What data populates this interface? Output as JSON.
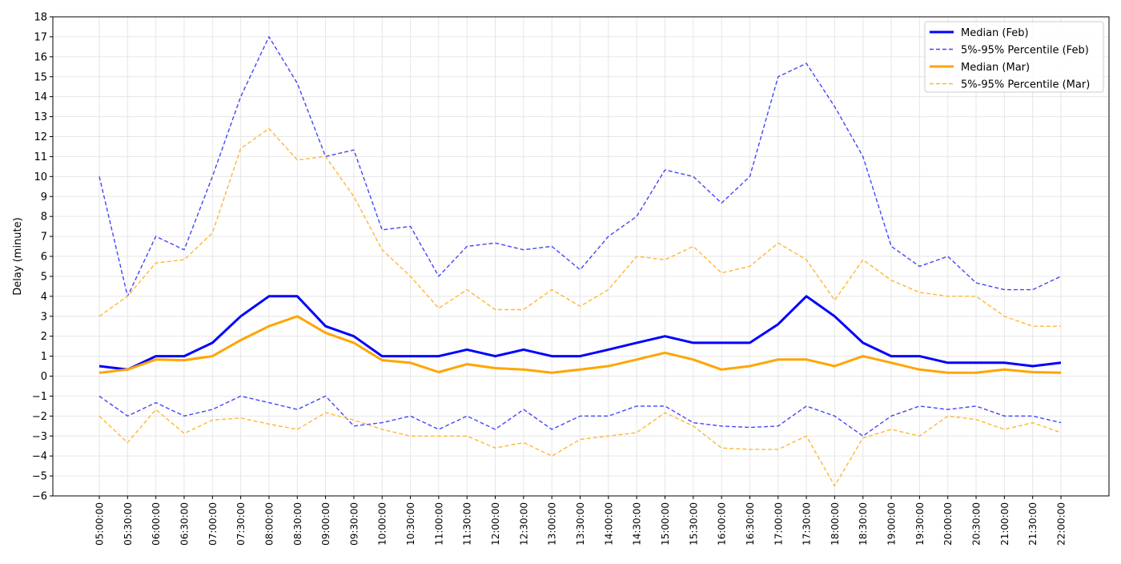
{
  "chart_data": {
    "type": "line",
    "title": "",
    "xlabel": "",
    "ylabel": "Delay (minute)",
    "ylim": [
      -6,
      18
    ],
    "yticks": [
      -6,
      -5,
      -4,
      -3,
      -2,
      -1,
      0,
      1,
      2,
      3,
      4,
      5,
      6,
      7,
      8,
      9,
      10,
      11,
      12,
      13,
      14,
      15,
      16,
      17,
      18
    ],
    "grid": true,
    "legend_position": "top-right",
    "x": [
      "05:00:00",
      "05:30:00",
      "06:00:00",
      "06:30:00",
      "07:00:00",
      "07:30:00",
      "08:00:00",
      "08:30:00",
      "09:00:00",
      "09:30:00",
      "10:00:00",
      "10:30:00",
      "11:00:00",
      "11:30:00",
      "12:00:00",
      "12:30:00",
      "13:00:00",
      "13:30:00",
      "14:00:00",
      "14:30:00",
      "15:00:00",
      "15:30:00",
      "16:00:00",
      "16:30:00",
      "17:00:00",
      "17:30:00",
      "18:00:00",
      "18:30:00",
      "19:00:00",
      "19:30:00",
      "20:00:00",
      "20:30:00",
      "21:00:00",
      "21:30:00",
      "22:00:00"
    ],
    "series": [
      {
        "name": "Median (Feb)",
        "color": "#0000ff",
        "style": "solid",
        "legend": true,
        "values": [
          0.5,
          0.33,
          1,
          1,
          1.67,
          3,
          4,
          4,
          2.5,
          2,
          1,
          1,
          1,
          1.33,
          1,
          1.33,
          1,
          1,
          1.33,
          1.67,
          2,
          1.67,
          1.67,
          1.67,
          2.6,
          4,
          3,
          1.67,
          1,
          1,
          0.67,
          0.67,
          0.67,
          0.5,
          0.67
        ]
      },
      {
        "name": "5%-95% Percentile (Feb)",
        "color": "#4444ff",
        "style": "dashed",
        "legend": true,
        "values": [
          10,
          4,
          7,
          6.33,
          10,
          14,
          17,
          14.67,
          11,
          11.33,
          7.33,
          7.5,
          5,
          6.5,
          6.67,
          6.33,
          6.5,
          5.33,
          7,
          8,
          10.33,
          10,
          8.67,
          10,
          15,
          15.67,
          13.5,
          11,
          6.5,
          5.5,
          6,
          4.67,
          4.33,
          4.33,
          5
        ]
      },
      {
        "name": "5% Percentile (Feb)",
        "color": "#4444ff",
        "style": "dashed",
        "legend": false,
        "values": [
          -1,
          -2,
          -1.33,
          -2,
          -1.67,
          -1,
          -1.33,
          -1.67,
          -1,
          -2.5,
          -2.33,
          -2,
          -2.67,
          -2,
          -2.67,
          -1.67,
          -2.67,
          -2,
          -2,
          -1.5,
          -1.5,
          -2.33,
          -2.5,
          -2.57,
          -2.5,
          -1.5,
          -2,
          -3,
          -2,
          -1.5,
          -1.67,
          -1.5,
          -2,
          -2,
          -2.33
        ]
      },
      {
        "name": "Median (Mar)",
        "color": "#ffa500",
        "style": "solid",
        "legend": true,
        "values": [
          0.17,
          0.33,
          0.83,
          0.8,
          1,
          1.8,
          2.5,
          3,
          2.17,
          1.67,
          0.8,
          0.67,
          0.2,
          0.6,
          0.4,
          0.33,
          0.17,
          0.33,
          0.5,
          0.83,
          1.17,
          0.83,
          0.33,
          0.5,
          0.83,
          0.83,
          0.5,
          1,
          0.67,
          0.33,
          0.17,
          0.17,
          0.33,
          0.2,
          0.17
        ]
      },
      {
        "name": "5%-95% Percentile (Mar)",
        "color": "#ffb733",
        "style": "dashed",
        "legend": true,
        "values": [
          3,
          4,
          5.67,
          5.83,
          7.17,
          11.4,
          12.4,
          10.83,
          11,
          9,
          6.33,
          5,
          3.4,
          4.33,
          3.33,
          3.33,
          4.33,
          3.5,
          4.33,
          6,
          5.83,
          6.5,
          5.17,
          5.5,
          6.67,
          5.83,
          3.8,
          5.83,
          4.8,
          4.2,
          4,
          4,
          3,
          2.5,
          2.5
        ]
      },
      {
        "name": "5% Percentile (Mar)",
        "color": "#ffb733",
        "style": "dashed",
        "legend": false,
        "values": [
          -2,
          -3.33,
          -1.67,
          -2.87,
          -2.2,
          -2.1,
          -2.4,
          -2.67,
          -1.83,
          -2.2,
          -2.67,
          -3,
          -3,
          -3,
          -3.6,
          -3.33,
          -4,
          -3.17,
          -3,
          -2.83,
          -1.83,
          -2.5,
          -3.6,
          -3.67,
          -3.67,
          -3,
          -5.5,
          -3.1,
          -2.67,
          -3,
          -2,
          -2.17,
          -2.67,
          -2.33,
          -2.83
        ]
      }
    ]
  }
}
